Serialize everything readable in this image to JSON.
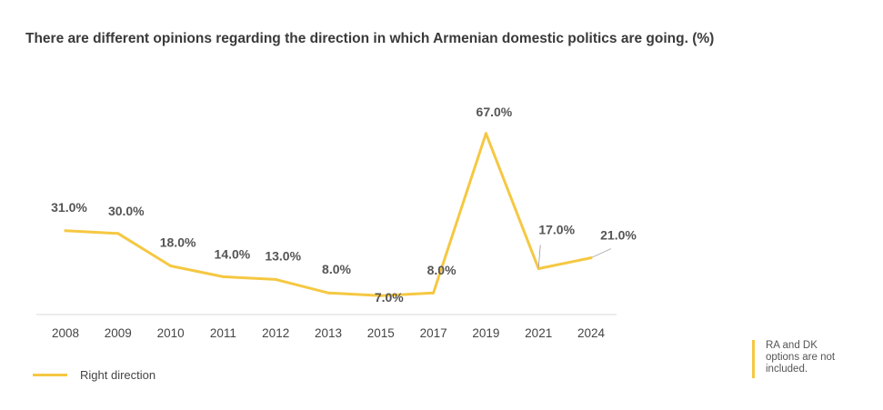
{
  "chart_data": {
    "type": "line",
    "title": "There are different opinions regarding the direction in which Armenian domestic politics are going. (%)",
    "categories": [
      "2008",
      "2009",
      "2010",
      "2011",
      "2012",
      "2013",
      "2015",
      "2017",
      "2019",
      "2021",
      "2024"
    ],
    "series": [
      {
        "name": "Right direction",
        "values": [
          31,
          30,
          18,
          14,
          13,
          8,
          7,
          8,
          67,
          17,
          21
        ],
        "labels": [
          "31.0%",
          "30.0%",
          "18.0%",
          "14.0%",
          "13.0%",
          "8.0%",
          "7.0%",
          "8.0%",
          "67.0%",
          "17.0%",
          "21.0%"
        ]
      }
    ],
    "ylim": [
      0,
      70
    ],
    "grid": false,
    "legend_position": "bottom-left",
    "note": "RA and DK options are not included."
  },
  "colors": {
    "series": "#F5C842",
    "axis": "#d9d9d9"
  }
}
